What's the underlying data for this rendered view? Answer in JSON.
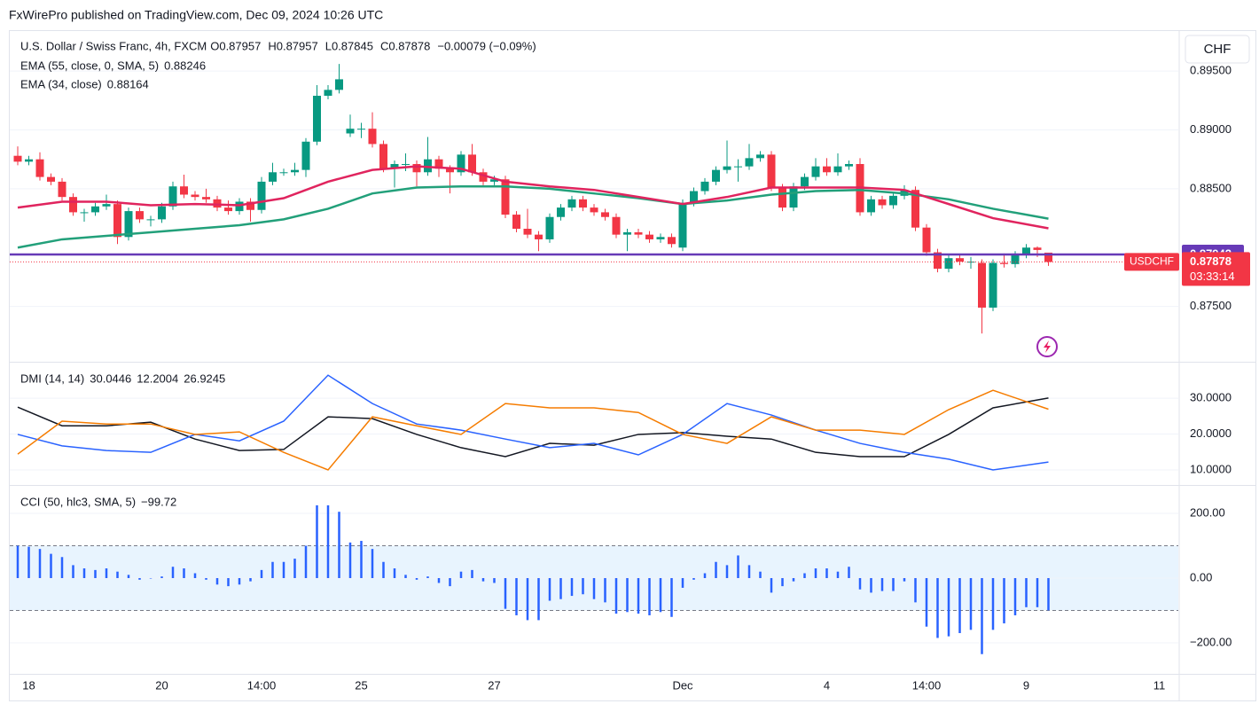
{
  "header": "FxWirePro published on TradingView.com, Dec 09, 2024 10:26 UTC",
  "chart_data": [
    {
      "type": "candlestick",
      "title": "U.S. Dollar / Swiss Franc, 4h, FXCM",
      "currency": "CHF",
      "legend_keys": [
        "O",
        "H",
        "L",
        "C"
      ],
      "change_label": "−0.00079 (−0.09%)",
      "symbol_label": "USDCHF",
      "countdown": "03:33:14",
      "up_color": "#089981",
      "down_color": "#f23645",
      "categories": [
        null,
        "18",
        null,
        null,
        null,
        null,
        null,
        null,
        null,
        null,
        null,
        null,
        null,
        "20",
        null,
        null,
        null,
        null,
        null,
        null,
        null,
        null,
        "14:00",
        null,
        null,
        null,
        null,
        null,
        null,
        null,
        null,
        "25",
        null,
        null,
        null,
        null,
        null,
        null,
        null,
        null,
        null,
        null,
        null,
        "27",
        null,
        null,
        null,
        null,
        null,
        null,
        null,
        null,
        null,
        null,
        null,
        null,
        null,
        null,
        null,
        null,
        "Dec",
        null,
        null,
        null,
        null,
        null,
        null,
        null,
        null,
        null,
        null,
        null,
        null,
        "4",
        null,
        null,
        null,
        null,
        null,
        null,
        null,
        null,
        "14:00",
        null,
        null,
        null,
        null,
        null,
        null,
        null,
        null,
        "9",
        null,
        null,
        null,
        null,
        null,
        null,
        null,
        null,
        null,
        null,
        null,
        "11"
      ],
      "open": [
        0.8878,
        0.8873,
        0.8875,
        0.886,
        0.8856,
        0.8843,
        0.883,
        0.883,
        0.8835,
        0.8837,
        0.8809,
        0.8831,
        0.8824,
        0.8824,
        0.8835,
        0.8852,
        0.8845,
        0.8843,
        0.8841,
        0.8834,
        0.8831,
        0.8839,
        0.8832,
        0.8856,
        0.8864,
        0.8864,
        0.8866,
        0.889,
        0.8929,
        0.8934,
        0.8897,
        0.8901,
        0.8901,
        0.8888,
        0.8867,
        0.8871,
        0.8871,
        0.8864,
        0.8875,
        0.8867,
        0.8864,
        0.8879,
        0.8864,
        0.8856,
        0.8858,
        0.8828,
        0.8816,
        0.8811,
        0.8807,
        0.8826,
        0.8834,
        0.8841,
        0.8834,
        0.883,
        0.8826,
        0.8811,
        0.8813,
        0.8811,
        0.8807,
        0.8809,
        0.88,
        0.8838,
        0.8848,
        0.8856,
        0.8866,
        0.8869,
        0.8869,
        0.8876,
        0.8879,
        0.8851,
        0.8834,
        0.8852,
        0.886,
        0.8869,
        0.8864,
        0.8869,
        0.8871,
        0.883,
        0.8841,
        0.8836,
        0.8844,
        0.8849,
        0.8817,
        0.8796,
        0.8782,
        0.8791,
        0.8788,
        0.8787,
        0.8749,
        0.8787,
        0.8786,
        0.8794,
        0.88,
        0.87957,
        null,
        null,
        null,
        null,
        null,
        null,
        null,
        null,
        null,
        null
      ],
      "high": [
        0.8886,
        0.8878,
        0.8881,
        0.8863,
        0.8859,
        0.8846,
        0.8833,
        0.8838,
        0.8845,
        0.884,
        0.8834,
        0.8834,
        0.8827,
        0.8838,
        0.8856,
        0.8862,
        0.8848,
        0.885,
        0.8844,
        0.884,
        0.8842,
        0.8842,
        0.886,
        0.8872,
        0.8867,
        0.8872,
        0.8893,
        0.8938,
        0.8938,
        0.8956,
        0.8913,
        0.8906,
        0.8915,
        0.8891,
        0.8874,
        0.888,
        0.8874,
        0.8894,
        0.8878,
        0.887,
        0.8882,
        0.8888,
        0.8867,
        0.8861,
        0.8861,
        0.8831,
        0.8833,
        0.8814,
        0.8829,
        0.8837,
        0.8844,
        0.8844,
        0.8837,
        0.8833,
        0.8829,
        0.8816,
        0.8816,
        0.8814,
        0.8812,
        0.8812,
        0.8841,
        0.8851,
        0.8859,
        0.8869,
        0.8891,
        0.8875,
        0.8888,
        0.8882,
        0.8882,
        0.8854,
        0.8855,
        0.8863,
        0.8876,
        0.8876,
        0.888,
        0.8874,
        0.8876,
        0.8844,
        0.8844,
        0.8847,
        0.8853,
        0.8852,
        0.882,
        0.8799,
        0.8794,
        0.8794,
        0.8792,
        0.879,
        0.879,
        0.8795,
        0.8797,
        0.8803,
        0.8801,
        0.87957,
        null,
        null,
        null,
        null,
        null,
        null,
        null,
        null,
        null,
        null
      ],
      "low": [
        0.887,
        0.887,
        0.8857,
        0.8853,
        0.884,
        0.8827,
        0.8822,
        0.8827,
        0.8832,
        0.8803,
        0.8806,
        0.8821,
        0.8818,
        0.8821,
        0.8832,
        0.8842,
        0.884,
        0.8838,
        0.8831,
        0.8828,
        0.8828,
        0.8822,
        0.8829,
        0.8853,
        0.8861,
        0.8861,
        0.886,
        0.8887,
        0.8926,
        0.8931,
        0.8894,
        0.8893,
        0.8885,
        0.8864,
        0.8851,
        0.8865,
        0.8852,
        0.8861,
        0.886,
        0.8846,
        0.8861,
        0.8861,
        0.8853,
        0.8853,
        0.8825,
        0.8813,
        0.8808,
        0.8797,
        0.8804,
        0.8823,
        0.8831,
        0.8831,
        0.8827,
        0.8823,
        0.8808,
        0.8797,
        0.8808,
        0.8804,
        0.8804,
        0.88,
        0.8797,
        0.8835,
        0.8845,
        0.8853,
        0.8863,
        0.8856,
        0.8866,
        0.8873,
        0.8848,
        0.8831,
        0.8831,
        0.8849,
        0.8857,
        0.8861,
        0.8861,
        0.8866,
        0.8827,
        0.8827,
        0.8833,
        0.8833,
        0.8841,
        0.8814,
        0.8793,
        0.8779,
        0.8779,
        0.8785,
        0.8782,
        0.8727,
        0.8746,
        0.8783,
        0.8783,
        0.8791,
        0.8792,
        0.87845,
        null,
        null,
        null,
        null,
        null,
        null,
        null,
        null,
        null,
        null
      ],
      "close": [
        0.8873,
        0.8875,
        0.886,
        0.8856,
        0.8843,
        0.883,
        0.883,
        0.8835,
        0.8837,
        0.8809,
        0.8831,
        0.8824,
        0.8824,
        0.8835,
        0.8852,
        0.8845,
        0.8843,
        0.8841,
        0.8834,
        0.8831,
        0.8839,
        0.8832,
        0.8856,
        0.8864,
        0.8864,
        0.8866,
        0.889,
        0.8929,
        0.8934,
        0.8943,
        0.8901,
        0.8901,
        0.8888,
        0.8867,
        0.8871,
        0.8871,
        0.8864,
        0.8875,
        0.8867,
        0.8864,
        0.8879,
        0.8864,
        0.8856,
        0.8858,
        0.8828,
        0.8816,
        0.8811,
        0.8807,
        0.8826,
        0.8834,
        0.8841,
        0.8834,
        0.883,
        0.8826,
        0.8811,
        0.8813,
        0.8811,
        0.8807,
        0.8809,
        0.8803,
        0.8838,
        0.8848,
        0.8856,
        0.8866,
        0.8869,
        0.8869,
        0.8876,
        0.8879,
        0.8851,
        0.8834,
        0.8852,
        0.886,
        0.8869,
        0.8864,
        0.8869,
        0.8871,
        0.883,
        0.8841,
        0.8836,
        0.8844,
        0.8849,
        0.8817,
        0.8796,
        0.8782,
        0.8791,
        0.8788,
        0.8788,
        0.8749,
        0.8787,
        0.8786,
        0.8794,
        0.88,
        0.8798,
        0.87878,
        null,
        null,
        null,
        null,
        null,
        null,
        null,
        null,
        null,
        null
      ],
      "x": [
        0,
        4,
        8,
        12,
        16,
        20,
        24,
        28,
        32,
        36,
        40,
        44,
        48,
        52,
        56,
        60,
        64,
        68,
        72,
        76,
        80,
        84,
        88,
        93
      ],
      "series": [
        {
          "name": "EMA (55, close, 0, SMA, 5)",
          "color": "#22a07a",
          "values": [
            0.88,
            0.8807,
            0.881,
            0.8813,
            0.8816,
            0.8819,
            0.8824,
            0.8833,
            0.8846,
            0.8851,
            0.8852,
            0.8852,
            0.885,
            0.8846,
            0.8842,
            0.8837,
            0.884,
            0.8845,
            0.8848,
            0.8849,
            0.8846,
            0.8841,
            0.8833,
            0.88246
          ]
        },
        {
          "name": "EMA (34, close)",
          "color": "#e0245e",
          "values": [
            0.8834,
            0.8839,
            0.8839,
            0.8836,
            0.8837,
            0.8836,
            0.8842,
            0.8856,
            0.8866,
            0.8869,
            0.8867,
            0.8856,
            0.8852,
            0.8849,
            0.8843,
            0.8837,
            0.8843,
            0.8851,
            0.8851,
            0.8851,
            0.8849,
            0.8837,
            0.8825,
            0.88164
          ]
        }
      ],
      "hline": {
        "value": 0.87942,
        "color": "#673ab7"
      },
      "ylim": [
        0.8703,
        0.8984
      ],
      "yticks": [
        {
          "value": 0.875,
          "label": "0.87500"
        },
        {
          "value": 0.885,
          "label": "0.88500"
        },
        {
          "value": 0.89,
          "label": "0.89000"
        },
        {
          "value": 0.895,
          "label": "0.89500"
        }
      ],
      "grid": true
    },
    {
      "type": "line",
      "title": "DMI (14, 14)",
      "x": [
        0,
        4,
        8,
        12,
        16,
        20,
        24,
        28,
        32,
        36,
        40,
        44,
        48,
        52,
        56,
        60,
        64,
        68,
        72,
        76,
        80,
        84,
        88,
        93
      ],
      "series": [
        {
          "color": "#131722",
          "values": [
            27.5,
            22.3,
            22.3,
            23.3,
            18.6,
            15.4,
            15.7,
            24.8,
            24.3,
            19.9,
            16.2,
            13.7,
            17.4,
            16.9,
            19.9,
            20.4,
            19.4,
            18.6,
            14.9,
            13.7,
            13.7,
            19.9,
            27.3,
            30.0446
          ]
        },
        {
          "color": "#2962ff",
          "values": [
            19.9,
            16.7,
            15.4,
            14.9,
            19.9,
            18.1,
            23.6,
            36.4,
            28.5,
            22.8,
            21.1,
            18.6,
            16.2,
            17.4,
            14.2,
            19.9,
            28.5,
            25.3,
            21.1,
            17.4,
            14.9,
            13.0,
            10.0,
            12.2004
          ]
        },
        {
          "color": "#f57c00",
          "values": [
            14.4,
            23.6,
            22.8,
            22.8,
            19.9,
            20.6,
            14.9,
            10.0,
            24.8,
            22.3,
            19.9,
            28.5,
            27.3,
            27.3,
            26.0,
            19.9,
            17.4,
            24.8,
            21.1,
            21.1,
            19.9,
            26.8,
            32.2,
            26.9245
          ]
        }
      ],
      "ylim": [
        5.8,
        39.9
      ],
      "yticks": [
        {
          "value": 10,
          "label": "10.0000"
        },
        {
          "value": 20,
          "label": "20.0000"
        },
        {
          "value": 30,
          "label": "30.0000"
        }
      ]
    },
    {
      "type": "bar",
      "title": "CCI (50, hlc3, SMA, 5)",
      "color": "#2962ff",
      "legend_value_label": "−99.72",
      "values": [
        100,
        97,
        90,
        75,
        65,
        40,
        30,
        25,
        30,
        20,
        10,
        -5,
        0,
        5,
        35,
        30,
        15,
        -5,
        -20,
        -25,
        -20,
        -10,
        25,
        50,
        50,
        60,
        100,
        225,
        225,
        205,
        110,
        115,
        90,
        50,
        30,
        10,
        -5,
        5,
        -15,
        -25,
        20,
        25,
        -10,
        -15,
        -95,
        -115,
        -130,
        -130,
        -70,
        -65,
        -55,
        -50,
        -65,
        -75,
        -110,
        -105,
        -110,
        -115,
        -105,
        -120,
        -30,
        -5,
        15,
        50,
        40,
        70,
        40,
        20,
        -45,
        -25,
        -10,
        15,
        30,
        30,
        20,
        35,
        -35,
        -45,
        -40,
        -40,
        -10,
        -75,
        -150,
        -185,
        -180,
        -170,
        -160,
        -235,
        -160,
        -140,
        -115,
        -90,
        -90,
        -99.72
      ],
      "bands": [
        -100,
        100
      ],
      "ylim": [
        -296,
        285
      ],
      "yticks": [
        {
          "value": -200,
          "label": "−200.00"
        },
        {
          "value": 0,
          "label": "0.00"
        },
        {
          "value": 200,
          "label": "200.00"
        }
      ]
    }
  ]
}
